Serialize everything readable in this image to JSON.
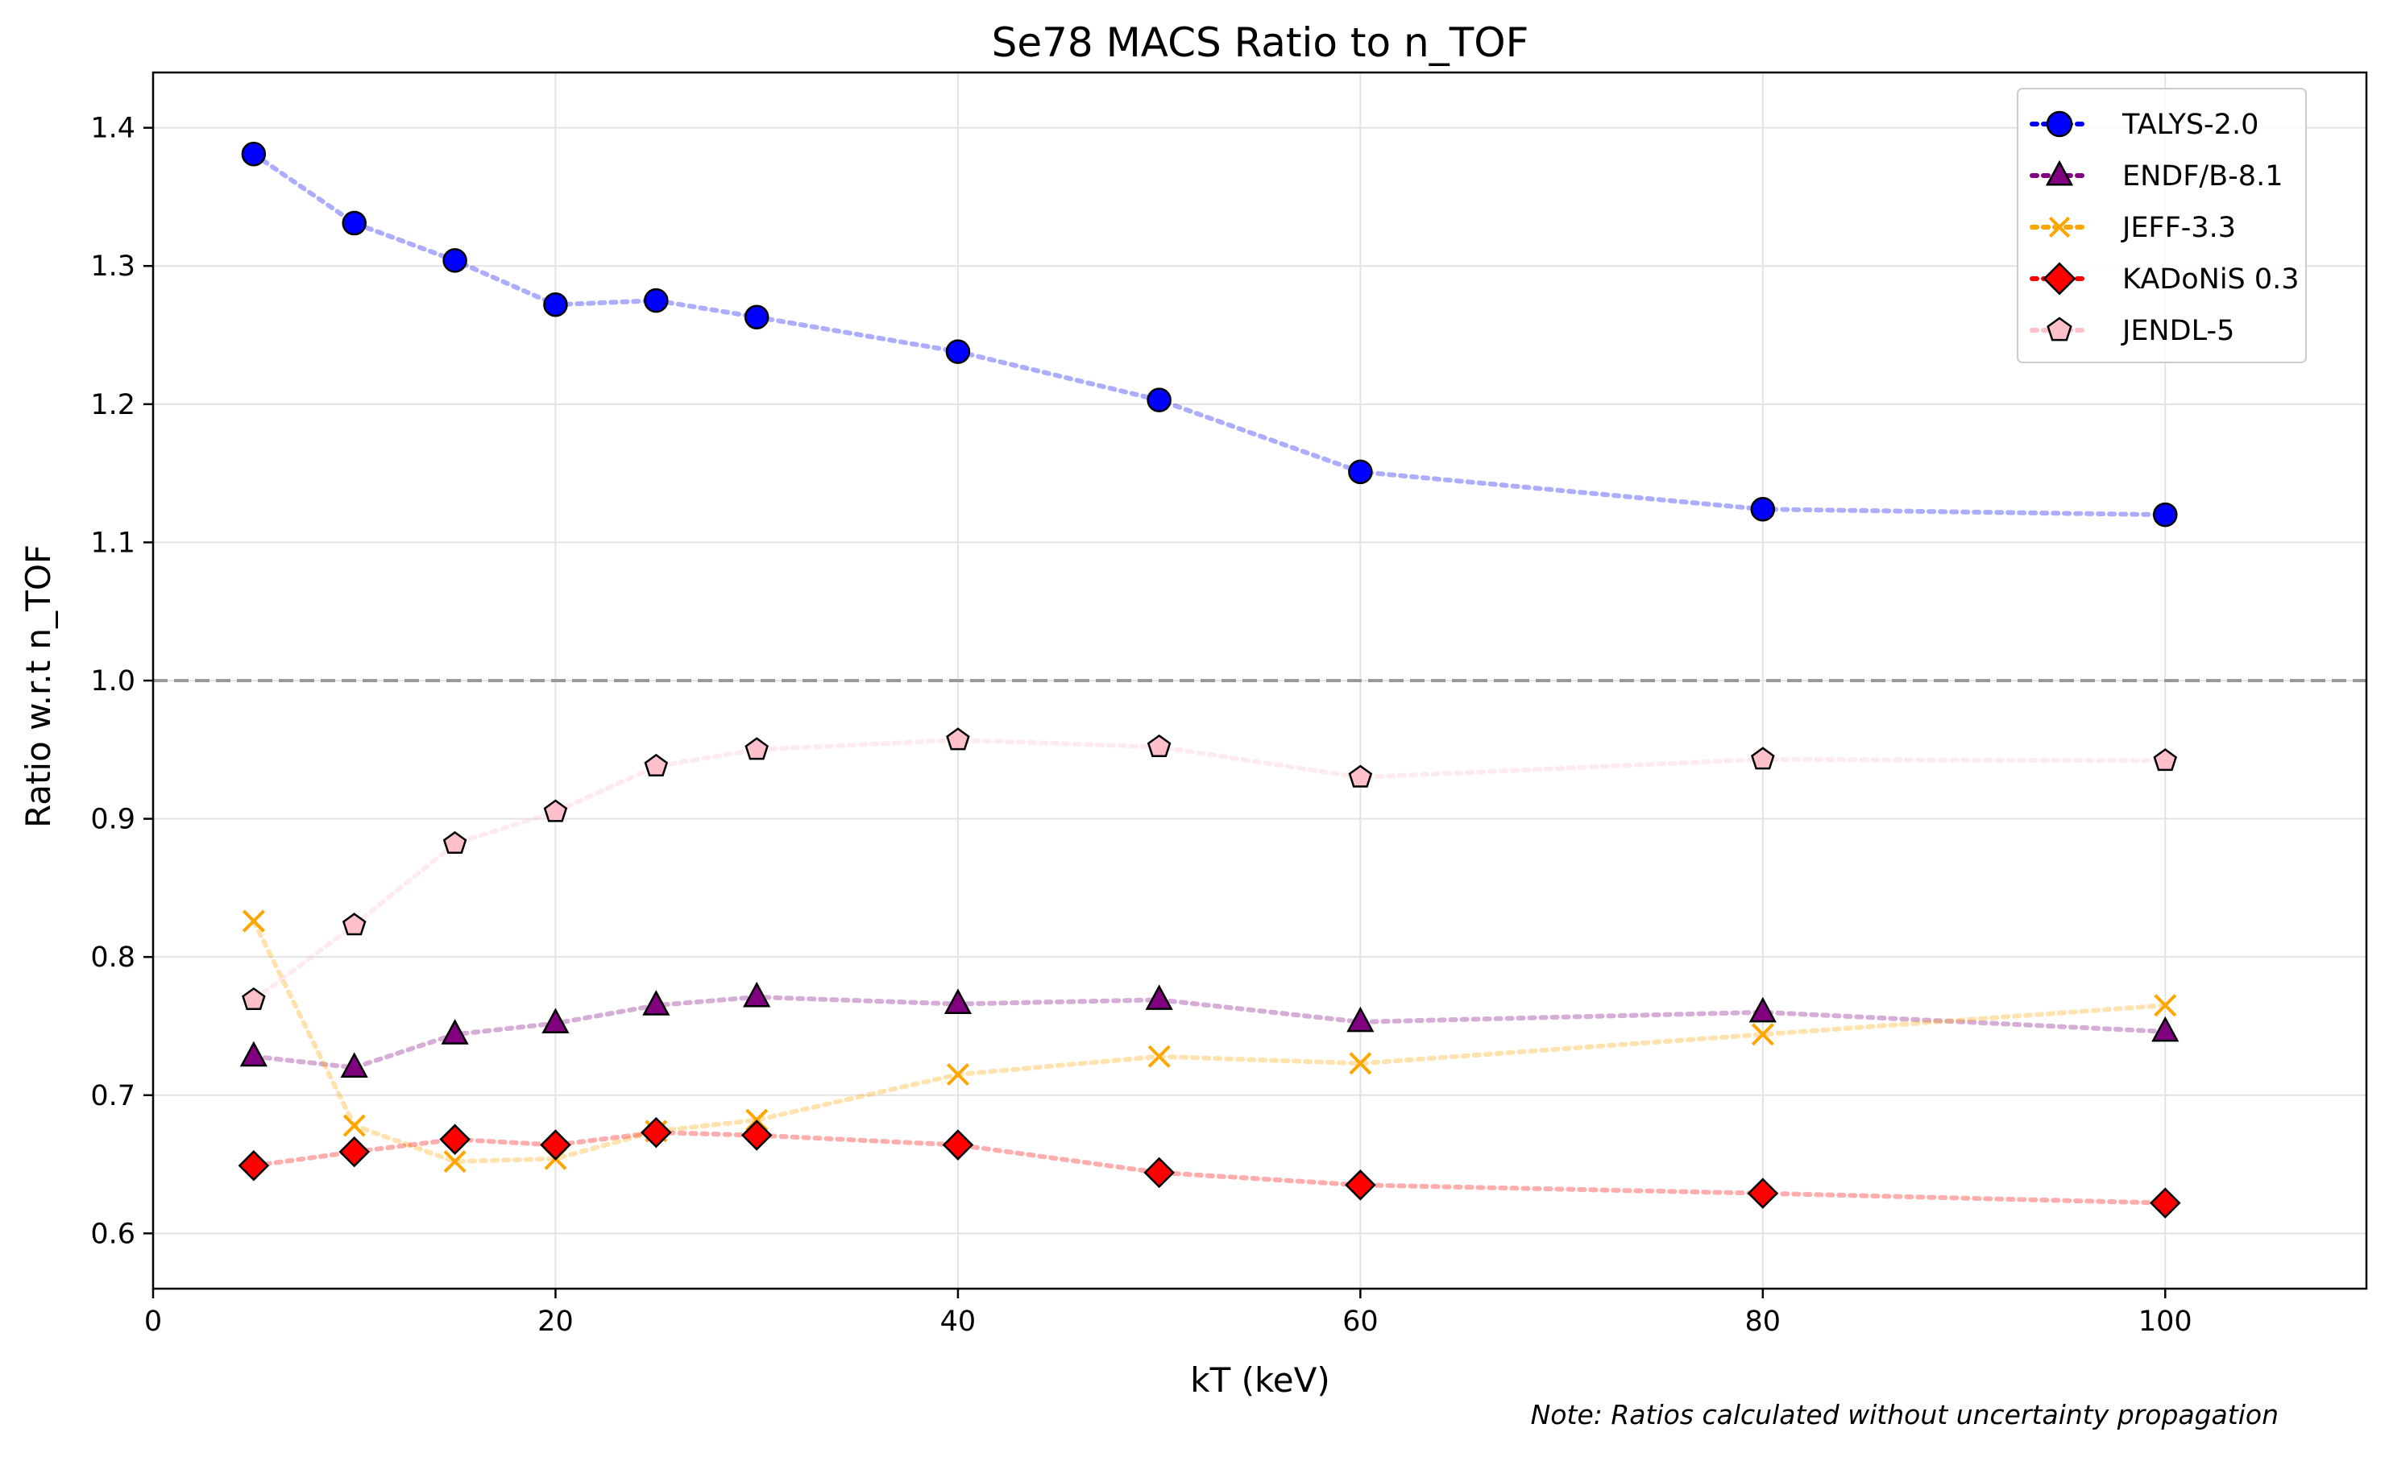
{
  "chart_data": {
    "type": "line",
    "title": "Se78 MACS Ratio to n_TOF",
    "xlabel": "kT (keV)",
    "ylabel": "Ratio w.r.t n_TOF",
    "xlim": [
      0,
      110
    ],
    "ylim": [
      0.56,
      1.44
    ],
    "x_ticks": [
      0,
      20,
      40,
      60,
      80,
      100
    ],
    "y_ticks": [
      0.6,
      0.7,
      0.8,
      0.9,
      1.0,
      1.1,
      1.2,
      1.3,
      1.4
    ],
    "x_tick_labels": [
      "0",
      "20",
      "40",
      "60",
      "80",
      "100"
    ],
    "y_tick_labels": [
      "0.6",
      "0.7",
      "0.8",
      "0.9",
      "1.0",
      "1.1",
      "1.2",
      "1.3",
      "1.4"
    ],
    "grid": true,
    "legend_position": "top-right",
    "reference_line": {
      "y": 1.0,
      "color": "#999999",
      "style": "dashed"
    },
    "note": "Note: Ratios calculated without uncertainty propagation",
    "x": [
      5,
      10,
      15,
      20,
      25,
      30,
      40,
      50,
      60,
      80,
      100
    ],
    "series": [
      {
        "name": "TALYS-2.0",
        "marker": "circle",
        "color": "#0000ff",
        "values": [
          1.381,
          1.331,
          1.304,
          1.272,
          1.275,
          1.263,
          1.238,
          1.203,
          1.151,
          1.124,
          1.12
        ]
      },
      {
        "name": "ENDF/B-8.1",
        "marker": "triangle",
        "color": "#800080",
        "values": [
          0.728,
          0.72,
          0.744,
          0.752,
          0.765,
          0.771,
          0.766,
          0.769,
          0.753,
          0.76,
          0.746
        ]
      },
      {
        "name": "JEFF-3.3",
        "marker": "x",
        "color": "#ffa500",
        "values": [
          0.826,
          0.678,
          0.652,
          0.654,
          0.674,
          0.682,
          0.715,
          0.728,
          0.723,
          0.744,
          0.765
        ]
      },
      {
        "name": "KADoNiS 0.3",
        "marker": "diamond",
        "color": "#ff0000",
        "values": [
          0.649,
          0.659,
          0.668,
          0.664,
          0.673,
          0.671,
          0.664,
          0.644,
          0.635,
          0.629,
          0.622
        ]
      },
      {
        "name": "JENDL-5",
        "marker": "pentagon",
        "color": "#ffc0cb",
        "values": [
          0.769,
          0.823,
          0.882,
          0.905,
          0.938,
          0.95,
          0.957,
          0.952,
          0.93,
          0.943,
          0.942
        ]
      }
    ]
  }
}
